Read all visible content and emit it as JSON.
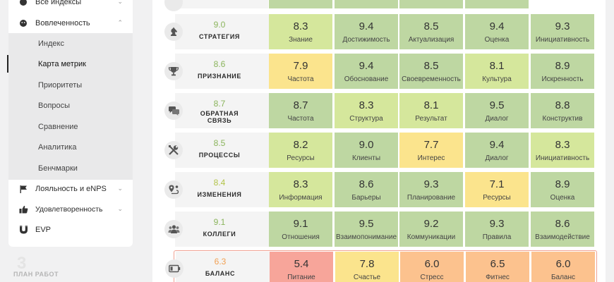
{
  "colors": {
    "green": "#bed7a2",
    "yellow_green": "#d5e79c",
    "yellow": "#fbe48d",
    "orange": "#fcc28e",
    "red": "#f7a59a",
    "score_green": "#8ab45b",
    "score_yellowgreen": "#b3c44a",
    "score_orange": "#f2a053"
  },
  "sidebar": {
    "top_item": {
      "label": "Все индексы",
      "icon": "dot-icon"
    },
    "engagement": {
      "label": "Вовлеченность",
      "icon": "dot-icon"
    },
    "submenu": [
      {
        "label": "Индекс"
      },
      {
        "label": "Карта метрик",
        "active": true
      },
      {
        "label": "Приоритеты"
      },
      {
        "label": "Вопросы"
      },
      {
        "label": "Сравнение"
      },
      {
        "label": "Аналитика"
      },
      {
        "label": "Бенчмарки"
      }
    ],
    "loyalty": {
      "label": "Лояльность и eNPS",
      "icon": "flag-icon"
    },
    "satisfaction": {
      "label": "Удовлетворенность",
      "icon": "thumbs-up-icon"
    },
    "evp": {
      "label": "EVP",
      "icon": "magnet-icon"
    }
  },
  "footer": {
    "plan_label": "ПЛАН РАБОТ",
    "plan_count": "3"
  },
  "rows": [
    {
      "icon": "chess-knight-icon",
      "score": "9.0",
      "name_lines": [
        "СТРАТЕГИЯ"
      ],
      "score_color": "score_green",
      "cells": [
        {
          "value": "8.3",
          "label": "Знание",
          "color": "yellow_green"
        },
        {
          "value": "9.4",
          "label": "Достижимость",
          "color": "green"
        },
        {
          "value": "8.5",
          "label": "Актуализация",
          "color": "green"
        },
        {
          "value": "9.4",
          "label": "Оценка",
          "color": "green"
        },
        {
          "value": "9.3",
          "label": "Инициативность",
          "color": "green"
        }
      ]
    },
    {
      "icon": "trophy-icon",
      "score": "8.6",
      "name_lines": [
        "ПРИЗНАНИЕ"
      ],
      "score_color": "score_green",
      "cells": [
        {
          "value": "7.9",
          "label": "Частота",
          "color": "yellow"
        },
        {
          "value": "9.4",
          "label": "Обоснование",
          "color": "green"
        },
        {
          "value": "8.5",
          "label": "Своевременность",
          "color": "green"
        },
        {
          "value": "8.1",
          "label": "Культура",
          "color": "yellow_green"
        },
        {
          "value": "8.9",
          "label": "Искренность",
          "color": "green"
        }
      ]
    },
    {
      "icon": "chat-icon",
      "score": "8.7",
      "name_lines": [
        "ОБРАТНАЯ",
        "СВЯЗЬ"
      ],
      "score_color": "score_green",
      "cells": [
        {
          "value": "8.7",
          "label": "Частота",
          "color": "green"
        },
        {
          "value": "8.3",
          "label": "Структура",
          "color": "yellow_green"
        },
        {
          "value": "8.1",
          "label": "Результат",
          "color": "yellow_green"
        },
        {
          "value": "9.5",
          "label": "Диалог",
          "color": "green"
        },
        {
          "value": "8.8",
          "label": "Конструктив",
          "color": "green"
        }
      ]
    },
    {
      "icon": "tools-icon",
      "score": "8.5",
      "name_lines": [
        "ПРОЦЕССЫ"
      ],
      "score_color": "score_green",
      "cells": [
        {
          "value": "8.2",
          "label": "Ресурсы",
          "color": "yellow_green"
        },
        {
          "value": "9.0",
          "label": "Клиенты",
          "color": "green"
        },
        {
          "value": "7.7",
          "label": "Интерес",
          "color": "yellow"
        },
        {
          "value": "9.4",
          "label": "Диалог",
          "color": "green"
        },
        {
          "value": "8.3",
          "label": "Инициативность",
          "color": "yellow_green"
        }
      ]
    },
    {
      "icon": "route-icon",
      "score": "8.4",
      "name_lines": [
        "ИЗМЕНЕНИЯ"
      ],
      "score_color": "score_yellowgreen",
      "cells": [
        {
          "value": "8.3",
          "label": "Информация",
          "color": "yellow_green"
        },
        {
          "value": "8.6",
          "label": "Барьеры",
          "color": "green"
        },
        {
          "value": "9.3",
          "label": "Планирование",
          "color": "green"
        },
        {
          "value": "7.1",
          "label": "Ресурсы",
          "color": "yellow"
        },
        {
          "value": "8.9",
          "label": "Оценка",
          "color": "green"
        }
      ]
    },
    {
      "icon": "people-icon",
      "score": "9.1",
      "name_lines": [
        "КОЛЛЕГИ"
      ],
      "score_color": "score_green",
      "cells": [
        {
          "value": "9.1",
          "label": "Отношения",
          "color": "green"
        },
        {
          "value": "9.5",
          "label": "Взаимопонимание",
          "color": "green"
        },
        {
          "value": "9.2",
          "label": "Коммуникации",
          "color": "green"
        },
        {
          "value": "9.3",
          "label": "Правила",
          "color": "green"
        },
        {
          "value": "8.6",
          "label": "Взаимодействие",
          "color": "green"
        }
      ]
    },
    {
      "icon": "battery-icon",
      "score": "6.3",
      "name_lines": [
        "БАЛАНС"
      ],
      "score_color": "score_orange",
      "alert": true,
      "cells": [
        {
          "value": "5.4",
          "label": "Питание",
          "color": "red"
        },
        {
          "value": "7.8",
          "label": "Счастье",
          "color": "yellow"
        },
        {
          "value": "6.0",
          "label": "Стресс",
          "color": "orange"
        },
        {
          "value": "6.5",
          "label": "Фитнес",
          "color": "orange"
        },
        {
          "value": "6.0",
          "label": "Баланс",
          "color": "orange"
        }
      ]
    }
  ],
  "top_partial_colors": [
    "green",
    "green",
    "green",
    "green"
  ]
}
